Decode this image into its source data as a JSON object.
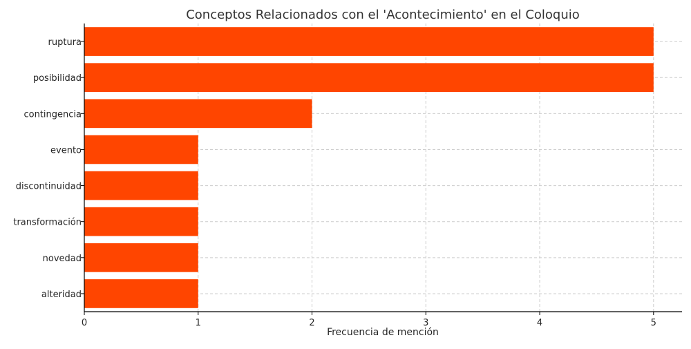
{
  "chart_data": {
    "type": "bar",
    "orientation": "horizontal",
    "title": "Conceptos Relacionados con el 'Acontecimiento' en el Coloquio",
    "xlabel": "Frecuencia de mención",
    "ylabel": "",
    "categories": [
      "ruptura",
      "posibilidad",
      "contingencia",
      "evento",
      "discontinuidad",
      "transformación",
      "novedad",
      "alteridad"
    ],
    "values": [
      5,
      5,
      2,
      1,
      1,
      1,
      1,
      1
    ],
    "xlim": [
      0,
      5.25
    ],
    "xticks": [
      0,
      1,
      2,
      3,
      4,
      5
    ],
    "grid": true,
    "bar_color": "#ff4500"
  }
}
